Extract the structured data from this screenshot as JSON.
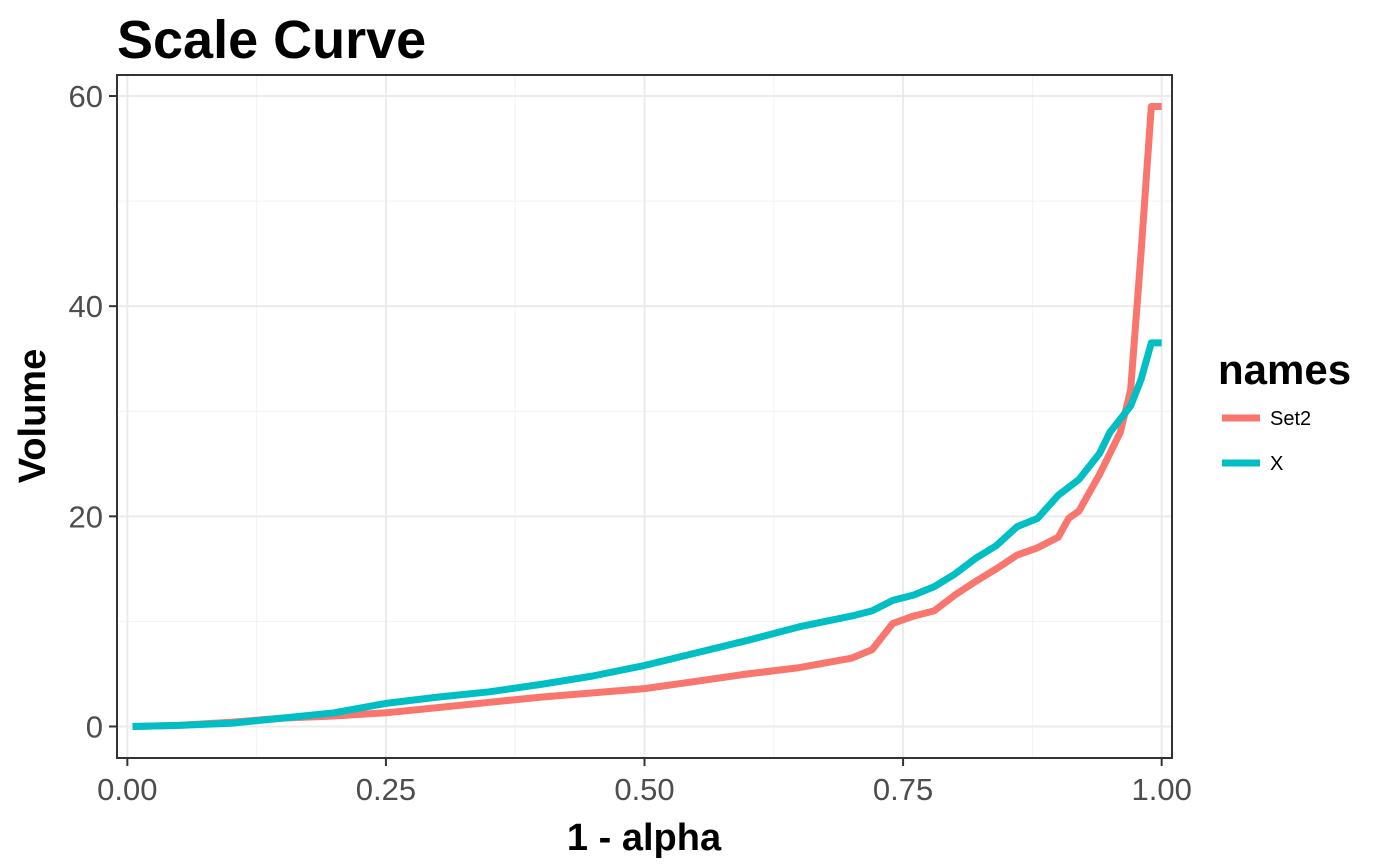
{
  "chart_data": {
    "type": "line",
    "title": "Scale Curve",
    "xlabel": "1 - alpha",
    "ylabel": "Volume",
    "xlim": [
      -0.01,
      1.01
    ],
    "ylim": [
      -3,
      62
    ],
    "x_ticks": [
      0,
      0.25,
      0.5,
      0.75,
      1
    ],
    "x_tick_labels": [
      "0.00",
      "0.25",
      "0.50",
      "0.75",
      "1.00"
    ],
    "y_ticks": [
      0,
      20,
      40,
      60
    ],
    "y_tick_labels": [
      "0",
      "20",
      "40",
      "60"
    ],
    "grid": true,
    "legend": {
      "title": "names",
      "position": "right"
    },
    "series": [
      {
        "name": "Set2",
        "color": "#F8766D",
        "x": [
          0.005,
          0.05,
          0.1,
          0.15,
          0.2,
          0.25,
          0.3,
          0.35,
          0.4,
          0.45,
          0.5,
          0.55,
          0.6,
          0.65,
          0.7,
          0.72,
          0.74,
          0.76,
          0.78,
          0.8,
          0.82,
          0.84,
          0.86,
          0.88,
          0.9,
          0.91,
          0.92,
          0.94,
          0.96,
          0.97,
          0.98,
          0.99,
          1.0
        ],
        "y": [
          0,
          0.1,
          0.4,
          0.8,
          1.0,
          1.3,
          1.8,
          2.3,
          2.8,
          3.2,
          3.6,
          4.3,
          5.0,
          5.6,
          6.5,
          7.3,
          9.8,
          10.5,
          11.0,
          12.5,
          13.8,
          15.0,
          16.3,
          17.0,
          18.0,
          19.8,
          20.5,
          24.0,
          28.0,
          32.0,
          45.0,
          59.0,
          59.0
        ]
      },
      {
        "name": "X",
        "color": "#00BFC4",
        "x": [
          0.005,
          0.05,
          0.1,
          0.15,
          0.2,
          0.25,
          0.3,
          0.35,
          0.4,
          0.45,
          0.5,
          0.55,
          0.6,
          0.65,
          0.7,
          0.72,
          0.74,
          0.76,
          0.78,
          0.8,
          0.82,
          0.84,
          0.86,
          0.88,
          0.9,
          0.92,
          0.94,
          0.95,
          0.97,
          0.98,
          0.99,
          1.0
        ],
        "y": [
          0,
          0.1,
          0.3,
          0.8,
          1.3,
          2.2,
          2.8,
          3.3,
          4.0,
          4.8,
          5.8,
          7.0,
          8.2,
          9.5,
          10.5,
          11.0,
          12.0,
          12.5,
          13.3,
          14.5,
          16.0,
          17.2,
          19.0,
          19.8,
          22.0,
          23.5,
          26.0,
          28.0,
          30.5,
          33.0,
          36.5,
          36.5
        ]
      }
    ]
  }
}
